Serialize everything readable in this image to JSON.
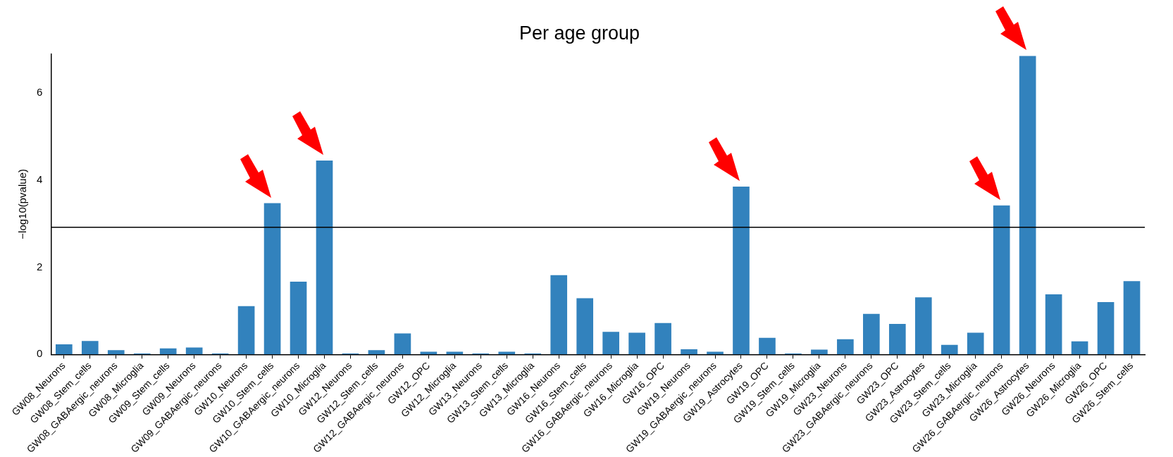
{
  "chart_data": {
    "type": "bar",
    "title": "Per age group",
    "ylabel": "−log10(pvalue)",
    "categories": [
      "GW08_Neurons",
      "GW08_Stem_cells",
      "GW08_GABAergic_neurons",
      "GW08_Microglia",
      "GW09_Stem_cells",
      "GW09_Neurons",
      "GW09_GABAergic_neurons",
      "GW10_Neurons",
      "GW10_Stem_cells",
      "GW10_GABAergic_neurons",
      "GW10_Microglia",
      "GW12_Neurons",
      "GW12_Stem_cells",
      "GW12_GABAergic_neurons",
      "GW12_OPC",
      "GW12_Microglia",
      "GW13_Neurons",
      "GW13_Stem_cells",
      "GW13_Microglia",
      "GW16_Neurons",
      "GW16_Stem_cells",
      "GW16_GABAergic_neurons",
      "GW16_Microglia",
      "GW16_OPC",
      "GW19_Neurons",
      "GW19_GABAergic_neurons",
      "GW19_Astrocytes",
      "GW19_OPC",
      "GW19_Stem_cells",
      "GW19_Microglia",
      "GW23_Neurons",
      "GW23_GABAergic_neurons",
      "GW23_OPC",
      "GW23_Astrocytes",
      "GW23_Stem_cells",
      "GW23_Microglia",
      "GW26_GABAergic_neurons",
      "GW26_Astrocytes",
      "GW26_Neurons",
      "GW26_Microglia",
      "GW26_OPC",
      "GW26_Stem_cells"
    ],
    "values": [
      0.23,
      0.31,
      0.1,
      0.02,
      0.14,
      0.16,
      0.02,
      1.11,
      3.47,
      1.67,
      4.45,
      0.02,
      0.1,
      0.48,
      0.06,
      0.06,
      0.02,
      0.06,
      0.02,
      1.82,
      1.29,
      0.52,
      0.5,
      0.72,
      0.12,
      0.06,
      3.85,
      0.38,
      0.02,
      0.11,
      0.35,
      0.93,
      0.7,
      1.31,
      0.22,
      0.5,
      3.42,
      6.85,
      1.38,
      0.3,
      1.2,
      1.68
    ],
    "color": "#3282bd",
    "ylim": [
      0,
      6.9
    ],
    "yticks": [
      0,
      2,
      4,
      6
    ],
    "grid": false,
    "legend": false,
    "ref_lines": [
      {
        "axis": "y",
        "value": 2.92,
        "color": "#000000"
      }
    ]
  }
}
